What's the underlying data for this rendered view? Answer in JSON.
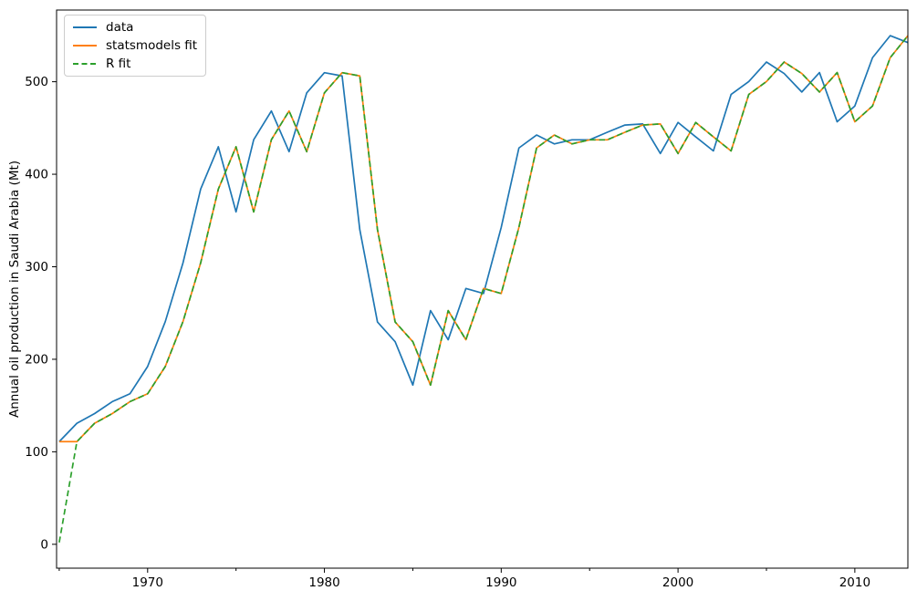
{
  "chart_data": {
    "type": "line",
    "title": "",
    "xlabel": "",
    "ylabel": "Annual oil production in Saudi Arabia (Mt)",
    "grid": false,
    "background": "#ffffff",
    "axis_color": "#000000",
    "xlim": [
      1964.85,
      2013.0
    ],
    "ylim": [
      -25.8,
      577.5
    ],
    "xticks": {
      "major": [
        1970,
        1980,
        1990,
        2000,
        2010
      ],
      "minor": [
        1965,
        1975,
        1985,
        1995,
        2005
      ]
    },
    "yticks": {
      "major": [
        0,
        100,
        200,
        300,
        400,
        500
      ]
    },
    "legend": {
      "position": "upper-left",
      "items": [
        "data",
        "statsmodels fit",
        "R fit"
      ]
    },
    "x": [
      1965,
      1966,
      1967,
      1968,
      1969,
      1970,
      1971,
      1972,
      1973,
      1974,
      1975,
      1976,
      1977,
      1978,
      1979,
      1980,
      1981,
      1982,
      1983,
      1984,
      1985,
      1986,
      1987,
      1988,
      1989,
      1990,
      1991,
      1992,
      1993,
      1994,
      1995,
      1996,
      1997,
      1998,
      1999,
      2000,
      2001,
      2002,
      2003,
      2004,
      2005,
      2006,
      2007,
      2008,
      2009,
      2010,
      2011,
      2012,
      2013
    ],
    "series": [
      {
        "name": "data",
        "color": "#1f77b4",
        "style": "solid",
        "values": [
          111.0,
          130.8,
          141.3,
          154.2,
          162.7,
          192.2,
          240.8,
          304.2,
          384.0,
          429.7,
          359.3,
          437.3,
          468.4,
          424.4,
          488.0,
          509.8,
          506.3,
          340.2,
          240.3,
          219.0,
          172.1,
          252.6,
          221.1,
          276.5,
          271.1,
          342.6,
          428.4,
          442.4,
          432.8,
          437.2,
          437.2,
          445.4,
          453.2,
          454.4,
          422.4,
          456.0,
          440.4,
          425.2,
          486.2,
          500.2,
          521.3,
          508.9,
          488.9,
          509.9,
          456.7,
          473.8,
          526.0,
          549.8,
          542.3
        ]
      },
      {
        "name": "statsmodels fit",
        "color": "#ff7f0e",
        "style": "solid",
        "values": [
          111.0,
          111.0,
          130.8,
          141.3,
          154.2,
          162.7,
          192.2,
          240.8,
          304.2,
          384.0,
          429.7,
          359.3,
          437.3,
          468.4,
          424.4,
          488.0,
          509.8,
          506.3,
          340.2,
          240.3,
          219.0,
          172.1,
          252.6,
          221.1,
          276.5,
          271.1,
          342.6,
          428.4,
          442.4,
          432.8,
          437.2,
          437.2,
          445.4,
          453.2,
          454.4,
          422.4,
          456.0,
          440.4,
          425.2,
          486.2,
          500.2,
          521.3,
          508.9,
          488.9,
          509.9,
          456.7,
          473.8,
          526.0,
          549.8
        ]
      },
      {
        "name": "R fit",
        "color": "#2ca02c",
        "style": "dashed",
        "values": [
          2.0,
          111.0,
          130.8,
          141.3,
          154.2,
          162.7,
          192.2,
          240.8,
          304.2,
          384.0,
          429.7,
          359.3,
          437.3,
          468.4,
          424.4,
          488.0,
          509.8,
          506.3,
          340.2,
          240.3,
          219.0,
          172.1,
          252.6,
          221.1,
          276.5,
          271.1,
          342.6,
          428.4,
          442.4,
          432.8,
          437.2,
          437.2,
          445.4,
          453.2,
          454.4,
          422.4,
          456.0,
          440.4,
          425.2,
          486.2,
          500.2,
          521.3,
          508.9,
          488.9,
          509.9,
          456.7,
          473.8,
          526.0,
          549.8
        ]
      }
    ]
  }
}
